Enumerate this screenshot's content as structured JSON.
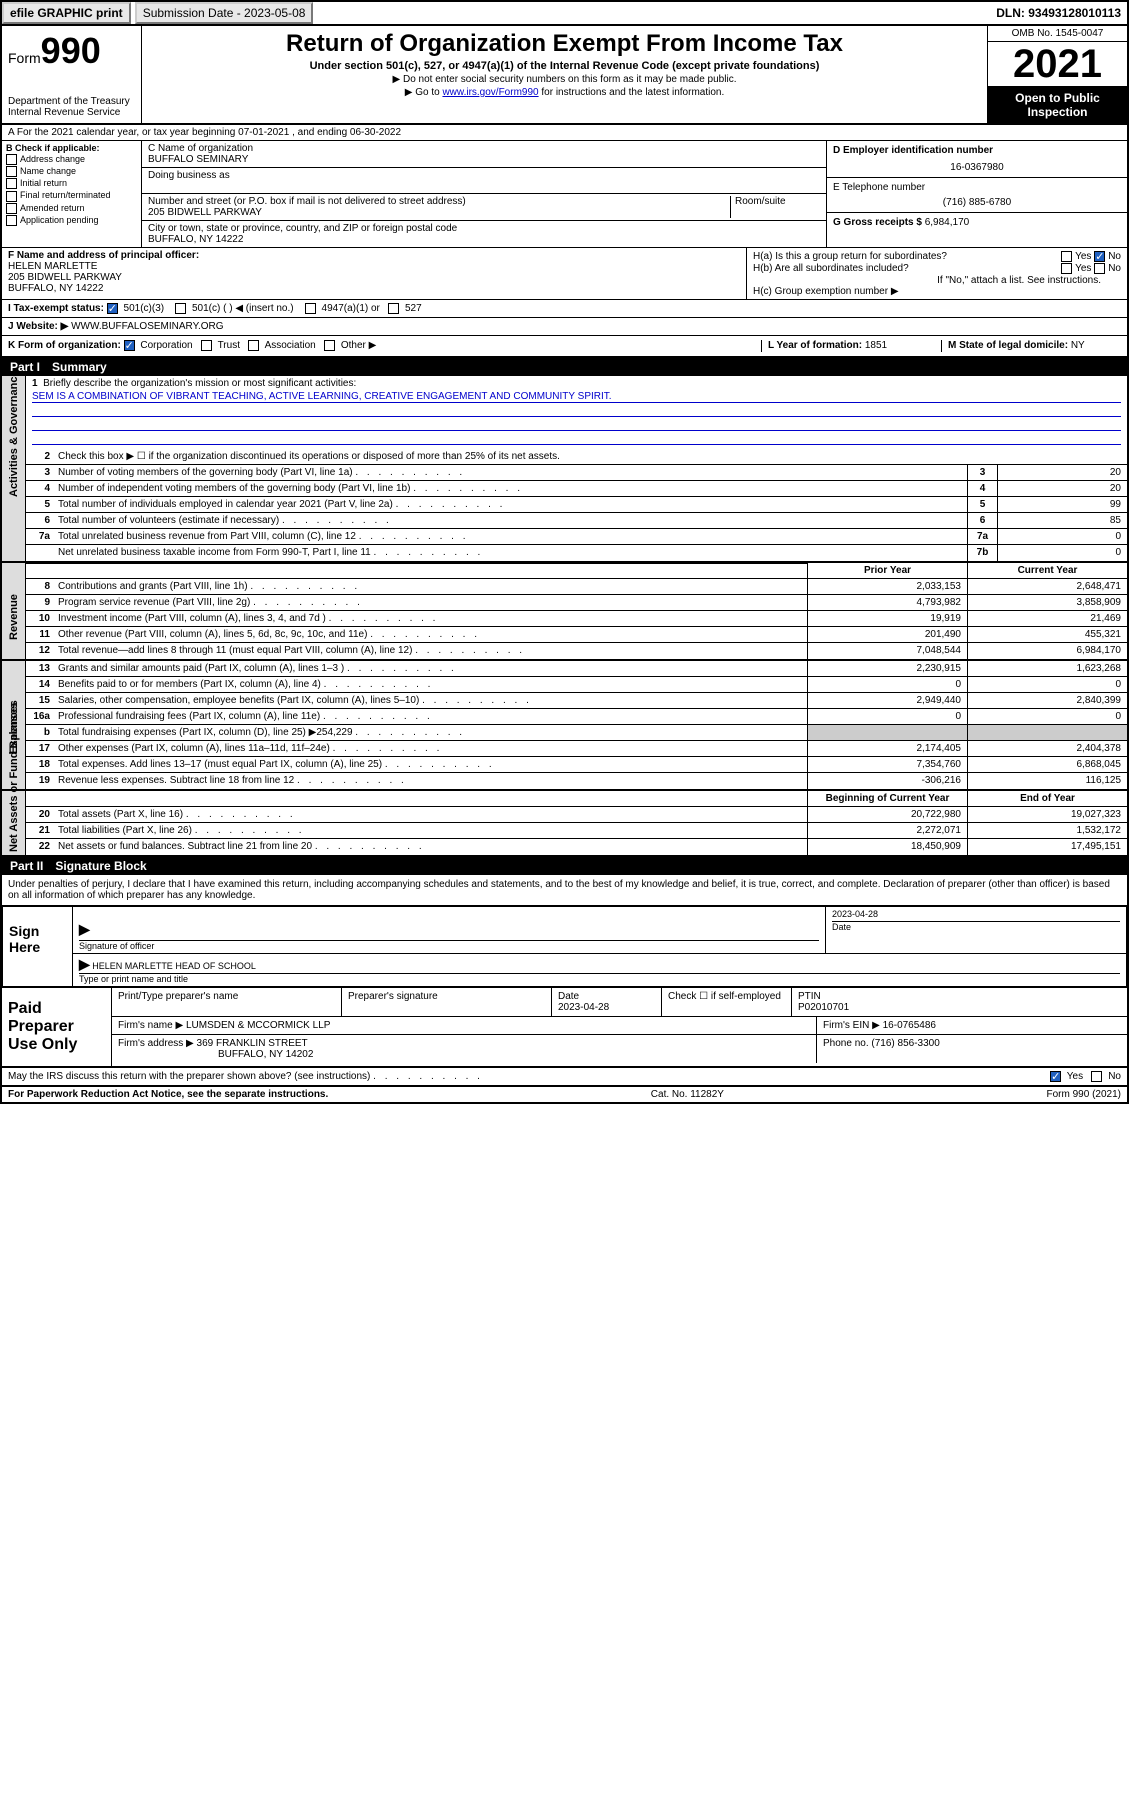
{
  "topbar": {
    "efile": "efile GRAPHIC print",
    "submission": "Submission Date - 2023-05-08",
    "dln": "DLN: 93493128010113"
  },
  "header": {
    "form_prefix": "Form",
    "form_num": "990",
    "dept": "Department of the Treasury",
    "irs": "Internal Revenue Service",
    "title": "Return of Organization Exempt From Income Tax",
    "sub": "Under section 501(c), 527, or 4947(a)(1) of the Internal Revenue Code (except private foundations)",
    "note1": "▶ Do not enter social security numbers on this form as it may be made public.",
    "note2_pre": "▶ Go to ",
    "note2_link": "www.irs.gov/Form990",
    "note2_post": " for instructions and the latest information.",
    "omb": "OMB No. 1545-0047",
    "year": "2021",
    "inspection": "Open to Public Inspection"
  },
  "row_a": "A For the 2021 calendar year, or tax year beginning 07-01-2021   , and ending 06-30-2022",
  "col_b": {
    "hdr": "B Check if applicable:",
    "opts": [
      "Address change",
      "Name change",
      "Initial return",
      "Final return/terminated",
      "Amended return",
      "Application pending"
    ]
  },
  "col_c": {
    "name_lbl": "C Name of organization",
    "name": "BUFFALO SEMINARY",
    "dba_lbl": "Doing business as",
    "addr_lbl": "Number and street (or P.O. box if mail is not delivered to street address)",
    "room_lbl": "Room/suite",
    "addr": "205 BIDWELL PARKWAY",
    "city_lbl": "City or town, state or province, country, and ZIP or foreign postal code",
    "city": "BUFFALO, NY  14222"
  },
  "col_de": {
    "d_lbl": "D Employer identification number",
    "d_val": "16-0367980",
    "e_lbl": "E Telephone number",
    "e_val": "(716) 885-6780",
    "g_lbl": "G Gross receipts $",
    "g_val": "6,984,170"
  },
  "col_f": {
    "lbl": "F Name and address of principal officer:",
    "name": "HELEN MARLETTE",
    "addr1": "205 BIDWELL PARKWAY",
    "addr2": "BUFFALO, NY  14222"
  },
  "col_h": {
    "ha": "H(a)  Is this a group return for subordinates?",
    "ha_yes": "Yes",
    "ha_no": "No",
    "hb": "H(b)  Are all subordinates included?",
    "hb_yes": "Yes",
    "hb_no": "No",
    "hb_note": "If \"No,\" attach a list. See instructions.",
    "hc": "H(c)  Group exemption number ▶"
  },
  "row_i": {
    "lbl": "I   Tax-exempt status:",
    "o1": "501(c)(3)",
    "o2": "501(c) (  ) ◀ (insert no.)",
    "o3": "4947(a)(1) or",
    "o4": "527"
  },
  "row_j": {
    "lbl": "J   Website: ▶",
    "val": "WWW.BUFFALOSEMINARY.ORG"
  },
  "row_k": {
    "lbl": "K Form of organization:",
    "o1": "Corporation",
    "o2": "Trust",
    "o3": "Association",
    "o4": "Other ▶",
    "l_lbl": "L Year of formation:",
    "l_val": "1851",
    "m_lbl": "M State of legal domicile:",
    "m_val": "NY"
  },
  "part1": {
    "num": "Part I",
    "title": "Summary"
  },
  "mission": {
    "n": "1",
    "lbl": "Briefly describe the organization's mission or most significant activities:",
    "text": "SEM IS A COMBINATION OF VIBRANT TEACHING, ACTIVE LEARNING, CREATIVE ENGAGEMENT AND COMMUNITY SPIRIT."
  },
  "gov": [
    {
      "n": "2",
      "d": "Check this box ▶ ☐  if the organization discontinued its operations or disposed of more than 25% of its net assets.",
      "b": "",
      "v": ""
    },
    {
      "n": "3",
      "d": "Number of voting members of the governing body (Part VI, line 1a)",
      "b": "3",
      "v": "20"
    },
    {
      "n": "4",
      "d": "Number of independent voting members of the governing body (Part VI, line 1b)",
      "b": "4",
      "v": "20"
    },
    {
      "n": "5",
      "d": "Total number of individuals employed in calendar year 2021 (Part V, line 2a)",
      "b": "5",
      "v": "99"
    },
    {
      "n": "6",
      "d": "Total number of volunteers (estimate if necessary)",
      "b": "6",
      "v": "85"
    },
    {
      "n": "7a",
      "d": "Total unrelated business revenue from Part VIII, column (C), line 12",
      "b": "7a",
      "v": "0"
    },
    {
      "n": "",
      "d": "Net unrelated business taxable income from Form 990-T, Part I, line 11",
      "b": "7b",
      "v": "0"
    }
  ],
  "col_hdrs": {
    "prior": "Prior Year",
    "current": "Current Year",
    "begin": "Beginning of Current Year",
    "end": "End of Year"
  },
  "revenue": [
    {
      "n": "8",
      "d": "Contributions and grants (Part VIII, line 1h)",
      "p": "2,033,153",
      "c": "2,648,471"
    },
    {
      "n": "9",
      "d": "Program service revenue (Part VIII, line 2g)",
      "p": "4,793,982",
      "c": "3,858,909"
    },
    {
      "n": "10",
      "d": "Investment income (Part VIII, column (A), lines 3, 4, and 7d )",
      "p": "19,919",
      "c": "21,469"
    },
    {
      "n": "11",
      "d": "Other revenue (Part VIII, column (A), lines 5, 6d, 8c, 9c, 10c, and 11e)",
      "p": "201,490",
      "c": "455,321"
    },
    {
      "n": "12",
      "d": "Total revenue—add lines 8 through 11 (must equal Part VIII, column (A), line 12)",
      "p": "7,048,544",
      "c": "6,984,170"
    }
  ],
  "expenses": [
    {
      "n": "13",
      "d": "Grants and similar amounts paid (Part IX, column (A), lines 1–3 )",
      "p": "2,230,915",
      "c": "1,623,268"
    },
    {
      "n": "14",
      "d": "Benefits paid to or for members (Part IX, column (A), line 4)",
      "p": "0",
      "c": "0"
    },
    {
      "n": "15",
      "d": "Salaries, other compensation, employee benefits (Part IX, column (A), lines 5–10)",
      "p": "2,949,440",
      "c": "2,840,399"
    },
    {
      "n": "16a",
      "d": "Professional fundraising fees (Part IX, column (A), line 11e)",
      "p": "0",
      "c": "0"
    },
    {
      "n": "b",
      "d": "Total fundraising expenses (Part IX, column (D), line 25) ▶254,229",
      "p": "",
      "c": "",
      "shade": true
    },
    {
      "n": "17",
      "d": "Other expenses (Part IX, column (A), lines 11a–11d, 11f–24e)",
      "p": "2,174,405",
      "c": "2,404,378"
    },
    {
      "n": "18",
      "d": "Total expenses. Add lines 13–17 (must equal Part IX, column (A), line 25)",
      "p": "7,354,760",
      "c": "6,868,045"
    },
    {
      "n": "19",
      "d": "Revenue less expenses. Subtract line 18 from line 12",
      "p": "-306,216",
      "c": "116,125"
    }
  ],
  "netassets": [
    {
      "n": "20",
      "d": "Total assets (Part X, line 16)",
      "p": "20,722,980",
      "c": "19,027,323"
    },
    {
      "n": "21",
      "d": "Total liabilities (Part X, line 26)",
      "p": "2,272,071",
      "c": "1,532,172"
    },
    {
      "n": "22",
      "d": "Net assets or fund balances. Subtract line 21 from line 20",
      "p": "18,450,909",
      "c": "17,495,151"
    }
  ],
  "vtabs": {
    "gov": "Activities & Governance",
    "rev": "Revenue",
    "exp": "Expenses",
    "net": "Net Assets or Fund Balances"
  },
  "part2": {
    "num": "Part II",
    "title": "Signature Block"
  },
  "sig": {
    "decl": "Under penalties of perjury, I declare that I have examined this return, including accompanying schedules and statements, and to the best of my knowledge and belief, it is true, correct, and complete. Declaration of preparer (other than officer) is based on all information of which preparer has any knowledge.",
    "sign_here": "Sign Here",
    "sig_lbl": "Signature of officer",
    "date_lbl": "Date",
    "date": "2023-04-28",
    "name": "HELEN MARLETTE  HEAD OF SCHOOL",
    "name_lbl": "Type or print name and title"
  },
  "prep": {
    "hdr": "Paid Preparer Use Only",
    "pn_lbl": "Print/Type preparer's name",
    "ps_lbl": "Preparer's signature",
    "pd_lbl": "Date",
    "pd": "2023-04-28",
    "se_lbl": "Check ☐ if self-employed",
    "ptin_lbl": "PTIN",
    "ptin": "P02010701",
    "firm_lbl": "Firm's name    ▶",
    "firm": "LUMSDEN & MCCORMICK LLP",
    "ein_lbl": "Firm's EIN ▶",
    "ein": "16-0765486",
    "addr_lbl": "Firm's address ▶",
    "addr1": "369 FRANKLIN STREET",
    "addr2": "BUFFALO, NY  14202",
    "phone_lbl": "Phone no.",
    "phone": "(716) 856-3300"
  },
  "discuss": {
    "q": "May the IRS discuss this return with the preparer shown above? (see instructions)",
    "yes": "Yes",
    "no": "No"
  },
  "footer": {
    "left": "For Paperwork Reduction Act Notice, see the separate instructions.",
    "mid": "Cat. No. 11282Y",
    "right": "Form 990 (2021)"
  }
}
